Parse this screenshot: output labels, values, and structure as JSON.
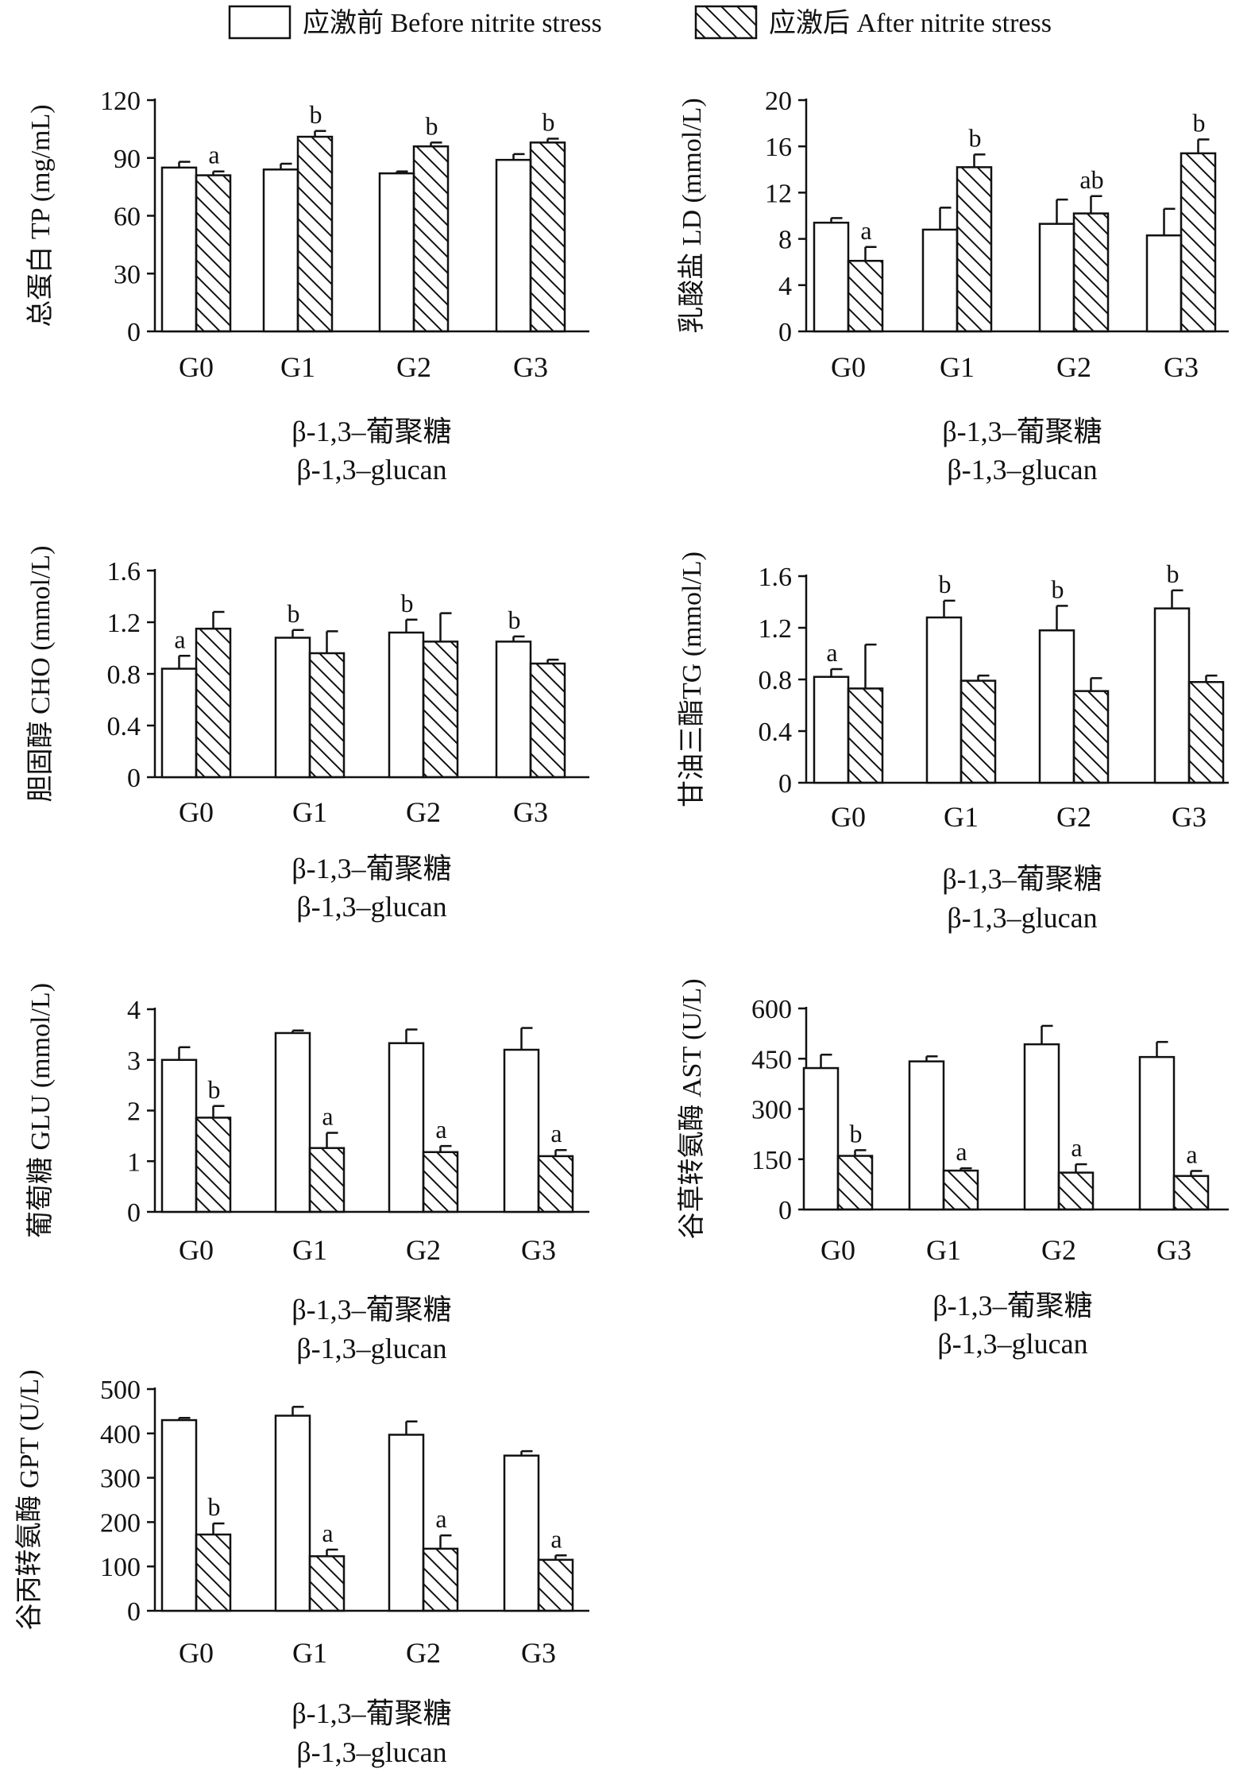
{
  "legend": {
    "before": "应激前 Before nitrite stress",
    "after": "应激后 After nitrite stress"
  },
  "chart_data": [
    {
      "type": "bar",
      "ylabel": "总蛋白 TP (mg/mL)",
      "xlabel_cn": "β-1,3–葡聚糖",
      "xlabel_en": "β-1,3–glucan",
      "categories": [
        "G0",
        "G1",
        "G2",
        "G3"
      ],
      "ylim": [
        0,
        120
      ],
      "yticks": [
        "0",
        "30",
        "60",
        "90",
        "120"
      ],
      "series": [
        {
          "name": "应激前 Before nitrite stress",
          "values": [
            85,
            84,
            82,
            89
          ],
          "errors": [
            3,
            3,
            1,
            3
          ],
          "labels": [
            "",
            "",
            "",
            ""
          ]
        },
        {
          "name": "应激后 After nitrite stress",
          "values": [
            81,
            101,
            96,
            98
          ],
          "errors": [
            2,
            3,
            2,
            2
          ],
          "labels": [
            "a",
            "b",
            "b",
            "b"
          ]
        }
      ]
    },
    {
      "type": "bar",
      "ylabel": "乳酸盐 LD (mmol/L)",
      "xlabel_cn": "β-1,3–葡聚糖",
      "xlabel_en": "β-1,3–glucan",
      "categories": [
        "G0",
        "G1",
        "G2",
        "G3"
      ],
      "ylim": [
        0,
        20
      ],
      "yticks": [
        "0",
        "4",
        "8",
        "12",
        "16",
        "20"
      ],
      "series": [
        {
          "name": "应激前 Before nitrite stress",
          "values": [
            9.4,
            8.8,
            9.3,
            8.3
          ],
          "errors": [
            0.4,
            1.9,
            2.1,
            2.3
          ],
          "labels": [
            "",
            "",
            "",
            ""
          ]
        },
        {
          "name": "应激后 After nitrite stress",
          "values": [
            6.1,
            14.2,
            10.2,
            15.4
          ],
          "errors": [
            1.2,
            1.1,
            1.5,
            1.2
          ],
          "labels": [
            "a",
            "b",
            "ab",
            "b"
          ]
        }
      ]
    },
    {
      "type": "bar",
      "ylabel": "胆固醇 CHO (mmol/L)",
      "xlabel_cn": "β-1,3–葡聚糖",
      "xlabel_en": "β-1,3–glucan",
      "categories": [
        "G0",
        "G1",
        "G2",
        "G3"
      ],
      "ylim": [
        0,
        1.6
      ],
      "yticks": [
        "0",
        "0.4",
        "0.8",
        "1.2",
        "1.6"
      ],
      "series": [
        {
          "name": "应激前 Before nitrite stress",
          "values": [
            0.84,
            1.08,
            1.12,
            1.05
          ],
          "errors": [
            0.1,
            0.06,
            0.1,
            0.04
          ],
          "labels": [
            "a",
            "b",
            "b",
            "b"
          ]
        },
        {
          "name": "应激后 After nitrite stress",
          "values": [
            1.15,
            0.96,
            1.05,
            0.88
          ],
          "errors": [
            0.13,
            0.17,
            0.22,
            0.03
          ],
          "labels": [
            "",
            "",
            "",
            ""
          ]
        }
      ]
    },
    {
      "type": "bar",
      "ylabel": "甘油三酯TG (mmol/L)",
      "xlabel_cn": "β-1,3–葡聚糖",
      "xlabel_en": "β-1,3–glucan",
      "categories": [
        "G0",
        "G1",
        "G2",
        "G3"
      ],
      "ylim": [
        0,
        1.6
      ],
      "yticks": [
        "0",
        "0.4",
        "0.8",
        "1.2",
        "1.6"
      ],
      "series": [
        {
          "name": "应激前 Before nitrite stress",
          "values": [
            0.82,
            1.28,
            1.18,
            1.35
          ],
          "errors": [
            0.06,
            0.13,
            0.19,
            0.14
          ],
          "labels": [
            "a",
            "b",
            "b",
            "b"
          ]
        },
        {
          "name": "应激后 After nitrite stress",
          "values": [
            0.73,
            0.79,
            0.71,
            0.78
          ],
          "errors": [
            0.34,
            0.04,
            0.1,
            0.05
          ],
          "labels": [
            "",
            "",
            "",
            ""
          ]
        }
      ]
    },
    {
      "type": "bar",
      "ylabel": "葡萄糖 GLU (mmol/L)",
      "xlabel_cn": "β-1,3–葡聚糖",
      "xlabel_en": "β-1,3–glucan",
      "categories": [
        "G0",
        "G1",
        "G2",
        "G3"
      ],
      "ylim": [
        0,
        4
      ],
      "yticks": [
        "0",
        "1",
        "2",
        "3",
        "4"
      ],
      "series": [
        {
          "name": "应激前 Before nitrite stress",
          "values": [
            3.0,
            3.53,
            3.33,
            3.2
          ],
          "errors": [
            0.25,
            0.05,
            0.27,
            0.43
          ],
          "labels": [
            "",
            "",
            "",
            ""
          ]
        },
        {
          "name": "应激后 After nitrite stress",
          "values": [
            1.86,
            1.26,
            1.18,
            1.1
          ],
          "errors": [
            0.23,
            0.3,
            0.12,
            0.12
          ],
          "labels": [
            "b",
            "a",
            "a",
            "a"
          ]
        }
      ]
    },
    {
      "type": "bar",
      "ylabel": "谷草转氨酶 AST (U/L)",
      "xlabel_cn": "β-1,3–葡聚糖",
      "xlabel_en": "β-1,3–glucan",
      "categories": [
        "G0",
        "G1",
        "G2",
        "G3"
      ],
      "ylim": [
        0,
        600
      ],
      "yticks": [
        "0",
        "150",
        "300",
        "450",
        "600"
      ],
      "series": [
        {
          "name": "应激前 Before nitrite stress",
          "values": [
            422,
            442,
            493,
            455
          ],
          "errors": [
            40,
            15,
            55,
            45
          ],
          "labels": [
            "",
            "",
            "",
            ""
          ]
        },
        {
          "name": "应激后 After nitrite stress",
          "values": [
            160,
            116,
            110,
            100
          ],
          "errors": [
            17,
            7,
            25,
            15
          ],
          "labels": [
            "b",
            "a",
            "a",
            "a"
          ]
        }
      ]
    },
    {
      "type": "bar",
      "ylabel": "谷丙转氨酶 GPT (U/L)",
      "xlabel_cn": "β-1,3–葡聚糖",
      "xlabel_en": "β-1,3–glucan",
      "categories": [
        "G0",
        "G1",
        "G2",
        "G3"
      ],
      "ylim": [
        0,
        500
      ],
      "yticks": [
        "0",
        "100",
        "200",
        "300",
        "400",
        "500"
      ],
      "series": [
        {
          "name": "应激前 Before nitrite stress",
          "values": [
            430,
            440,
            397,
            350
          ],
          "errors": [
            5,
            20,
            30,
            10
          ],
          "labels": [
            "",
            "",
            "",
            ""
          ]
        },
        {
          "name": "应激后 After nitrite stress",
          "values": [
            172,
            123,
            140,
            115
          ],
          "errors": [
            25,
            15,
            30,
            10
          ],
          "labels": [
            "b",
            "a",
            "a",
            "a"
          ]
        }
      ]
    }
  ]
}
